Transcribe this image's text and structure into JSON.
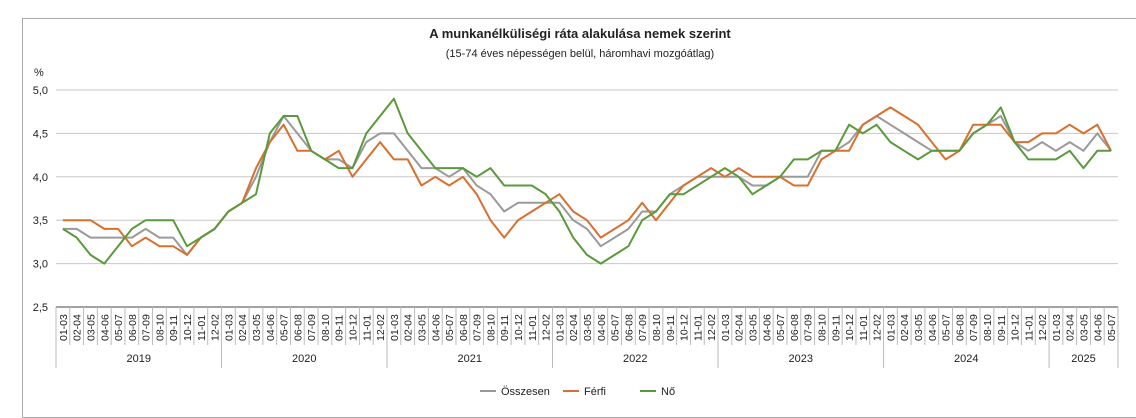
{
  "chart_data": {
    "type": "line",
    "title": "A munkanélküliségi ráta alakulása nemek szerint",
    "subtitle": "(15-74 éves népességen belül, háromhavi mozgóátlag)",
    "ylabel": "%",
    "ylim": [
      2.5,
      5.0
    ],
    "yticks": [
      "5,0",
      "4,5",
      "4,0",
      "3,5",
      "3,0",
      "2,5"
    ],
    "ytick_values": [
      5.0,
      4.5,
      4.0,
      3.5,
      3.0,
      2.5
    ],
    "grid": true,
    "legend_position": "bottom",
    "years": [
      {
        "label": "2019",
        "count": 12
      },
      {
        "label": "2020",
        "count": 12
      },
      {
        "label": "2021",
        "count": 12
      },
      {
        "label": "2022",
        "count": 12
      },
      {
        "label": "2023",
        "count": 12
      },
      {
        "label": "2024",
        "count": 12
      },
      {
        "label": "2025",
        "count": 5
      }
    ],
    "period_labels": [
      "01-03",
      "02-04",
      "03-05",
      "04-06",
      "05-07",
      "06-08",
      "07-09",
      "08-10",
      "09-11",
      "10-12",
      "11-01",
      "12-02"
    ],
    "series": [
      {
        "name": "Összesen",
        "color": "#9a9a9a",
        "values": [
          3.4,
          3.4,
          3.3,
          3.3,
          3.3,
          3.3,
          3.4,
          3.3,
          3.3,
          3.1,
          3.3,
          3.4,
          3.6,
          3.7,
          4.0,
          4.4,
          4.7,
          4.5,
          4.3,
          4.2,
          4.2,
          4.1,
          4.4,
          4.5,
          4.5,
          4.3,
          4.1,
          4.1,
          4.0,
          4.1,
          3.9,
          3.8,
          3.6,
          3.7,
          3.7,
          3.7,
          3.7,
          3.5,
          3.4,
          3.2,
          3.3,
          3.4,
          3.6,
          3.6,
          3.8,
          3.9,
          4.0,
          4.0,
          4.0,
          4.0,
          3.9,
          3.9,
          4.0,
          4.0,
          4.0,
          4.3,
          4.3,
          4.4,
          4.6,
          4.7,
          4.6,
          4.5,
          4.4,
          4.3,
          4.3,
          4.3,
          4.5,
          4.6,
          4.7,
          4.4,
          4.3,
          4.4,
          4.3,
          4.4,
          4.3,
          4.5,
          4.3
        ]
      },
      {
        "name": "Férfi",
        "color": "#d8702f",
        "values": [
          3.5,
          3.5,
          3.5,
          3.4,
          3.4,
          3.2,
          3.3,
          3.2,
          3.2,
          3.1,
          3.3,
          3.4,
          3.6,
          3.7,
          4.1,
          4.4,
          4.6,
          4.3,
          4.3,
          4.2,
          4.3,
          4.0,
          4.2,
          4.4,
          4.2,
          4.2,
          3.9,
          4.0,
          3.9,
          4.0,
          3.8,
          3.5,
          3.3,
          3.5,
          3.6,
          3.7,
          3.8,
          3.6,
          3.5,
          3.3,
          3.4,
          3.5,
          3.7,
          3.5,
          3.7,
          3.9,
          4.0,
          4.1,
          4.0,
          4.1,
          4.0,
          4.0,
          4.0,
          3.9,
          3.9,
          4.2,
          4.3,
          4.3,
          4.6,
          4.7,
          4.8,
          4.7,
          4.6,
          4.4,
          4.2,
          4.3,
          4.6,
          4.6,
          4.6,
          4.4,
          4.4,
          4.5,
          4.5,
          4.6,
          4.5,
          4.6,
          4.3
        ]
      },
      {
        "name": "Nő",
        "color": "#5b9a3c",
        "values": [
          3.4,
          3.3,
          3.1,
          3.0,
          3.2,
          3.4,
          3.5,
          3.5,
          3.5,
          3.2,
          3.3,
          3.4,
          3.6,
          3.7,
          3.8,
          4.5,
          4.7,
          4.7,
          4.3,
          4.2,
          4.1,
          4.1,
          4.5,
          4.7,
          4.9,
          4.5,
          4.3,
          4.1,
          4.1,
          4.1,
          4.0,
          4.1,
          3.9,
          3.9,
          3.9,
          3.8,
          3.6,
          3.3,
          3.1,
          3.0,
          3.1,
          3.2,
          3.5,
          3.6,
          3.8,
          3.8,
          3.9,
          4.0,
          4.1,
          4.0,
          3.8,
          3.9,
          4.0,
          4.2,
          4.2,
          4.3,
          4.3,
          4.6,
          4.5,
          4.6,
          4.4,
          4.3,
          4.2,
          4.3,
          4.3,
          4.3,
          4.5,
          4.6,
          4.8,
          4.4,
          4.2,
          4.2,
          4.2,
          4.3,
          4.1,
          4.3,
          4.3
        ]
      }
    ]
  }
}
